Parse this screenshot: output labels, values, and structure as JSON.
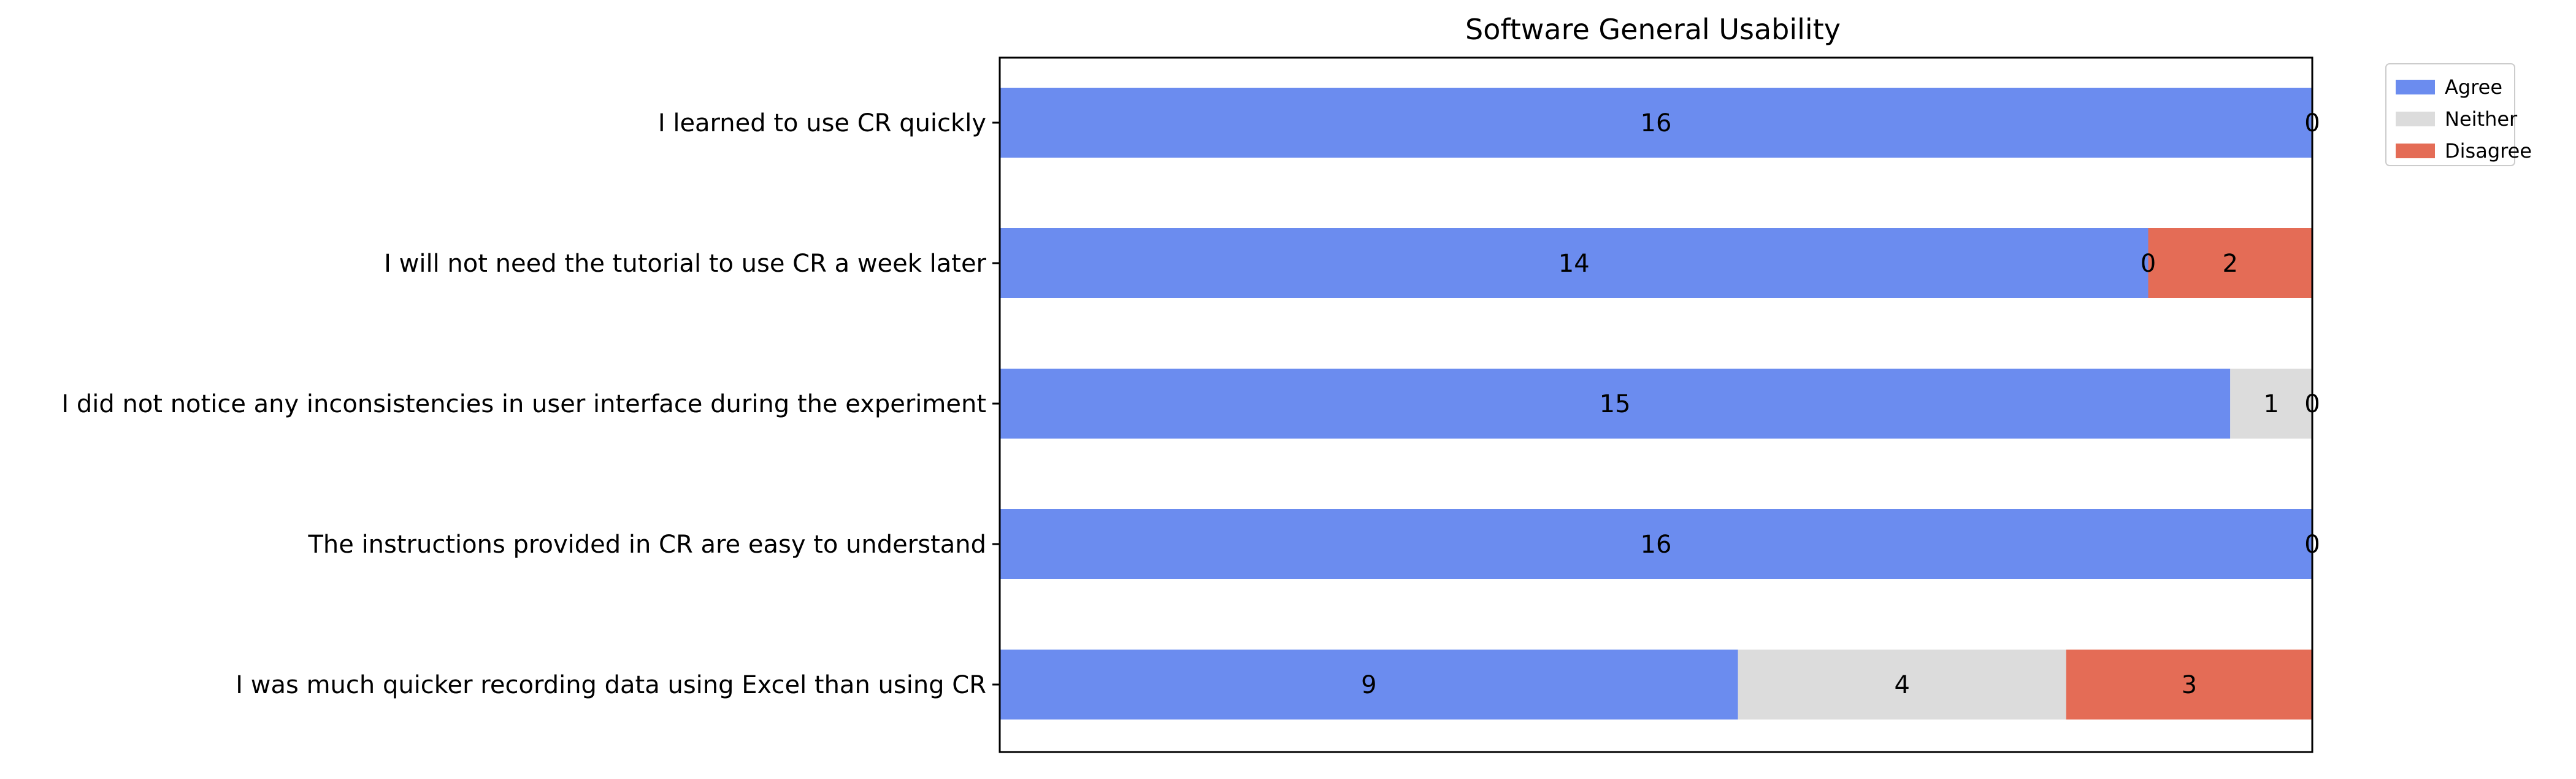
{
  "chart_data": {
    "type": "bar",
    "orientation": "horizontal",
    "stacked": true,
    "title": "Software General Usability",
    "xlabel": "",
    "ylabel": "",
    "xlim": [
      0,
      16
    ],
    "grid": false,
    "legend_position": "outside-top-right",
    "categories": [
      "I learned to use CR quickly",
      "I will not need the tutorial to use CR a week later",
      "I did not notice any inconsistencies in user interface during the experiment",
      "The instructions provided in CR are easy to understand",
      "I was much quicker recording data using Excel than using CR"
    ],
    "series": [
      {
        "name": "Agree",
        "color": "#6b8cef",
        "values": [
          16,
          14,
          15,
          16,
          9
        ]
      },
      {
        "name": "Neither",
        "color": "#dcdcdc",
        "values": [
          0,
          0,
          1,
          0,
          4
        ]
      },
      {
        "name": "Disagree",
        "color": "#e46c56",
        "values": [
          0,
          2,
          0,
          0,
          3
        ]
      }
    ],
    "data_labels": [
      [
        "16",
        "",
        "0"
      ],
      [
        "14",
        "0",
        "2"
      ],
      [
        "15",
        "1",
        "0"
      ],
      [
        "16",
        "",
        "0"
      ],
      [
        "9",
        "4",
        "3"
      ]
    ]
  }
}
